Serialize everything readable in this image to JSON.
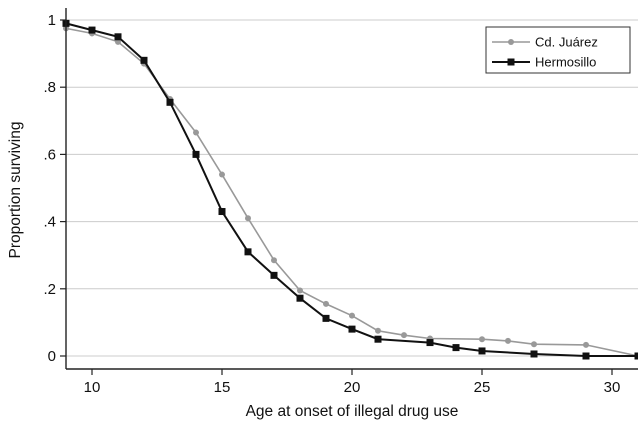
{
  "chart_data": {
    "type": "line",
    "xlabel": "Age at onset of illegal drug use",
    "ylabel": "Proportion surviving",
    "xlim": [
      9,
      31
    ],
    "ylim": [
      0,
      1
    ],
    "x_ticks": [
      10,
      15,
      20,
      25,
      30
    ],
    "x_tick_labels": [
      "10",
      "15",
      "20",
      "25",
      "30"
    ],
    "y_ticks": [
      0,
      0.2,
      0.4,
      0.6,
      0.8,
      1
    ],
    "y_tick_labels": [
      "0",
      ".2",
      ".4",
      ".6",
      ".8",
      "1"
    ],
    "grid": "horizontal",
    "legend_position": "top-right",
    "series": [
      {
        "name": "Cd. Juárez",
        "color": "#999999",
        "marker": "circle",
        "x": [
          9,
          10,
          11,
          12,
          13,
          14,
          15,
          16,
          17,
          18,
          19,
          20,
          21,
          22,
          23,
          25,
          26,
          27,
          29,
          31
        ],
        "y": [
          0.975,
          0.96,
          0.935,
          0.87,
          0.765,
          0.665,
          0.54,
          0.41,
          0.285,
          0.195,
          0.155,
          0.12,
          0.075,
          0.062,
          0.052,
          0.05,
          0.045,
          0.035,
          0.033,
          0.0
        ]
      },
      {
        "name": "Hermosillo",
        "color": "#111111",
        "marker": "square",
        "x": [
          9,
          10,
          11,
          12,
          13,
          14,
          15,
          16,
          17,
          18,
          19,
          20,
          21,
          23,
          24,
          25,
          27,
          29,
          31
        ],
        "y": [
          0.99,
          0.97,
          0.95,
          0.88,
          0.755,
          0.6,
          0.43,
          0.31,
          0.24,
          0.172,
          0.112,
          0.08,
          0.05,
          0.04,
          0.025,
          0.015,
          0.006,
          0.0,
          0.0
        ]
      }
    ]
  }
}
